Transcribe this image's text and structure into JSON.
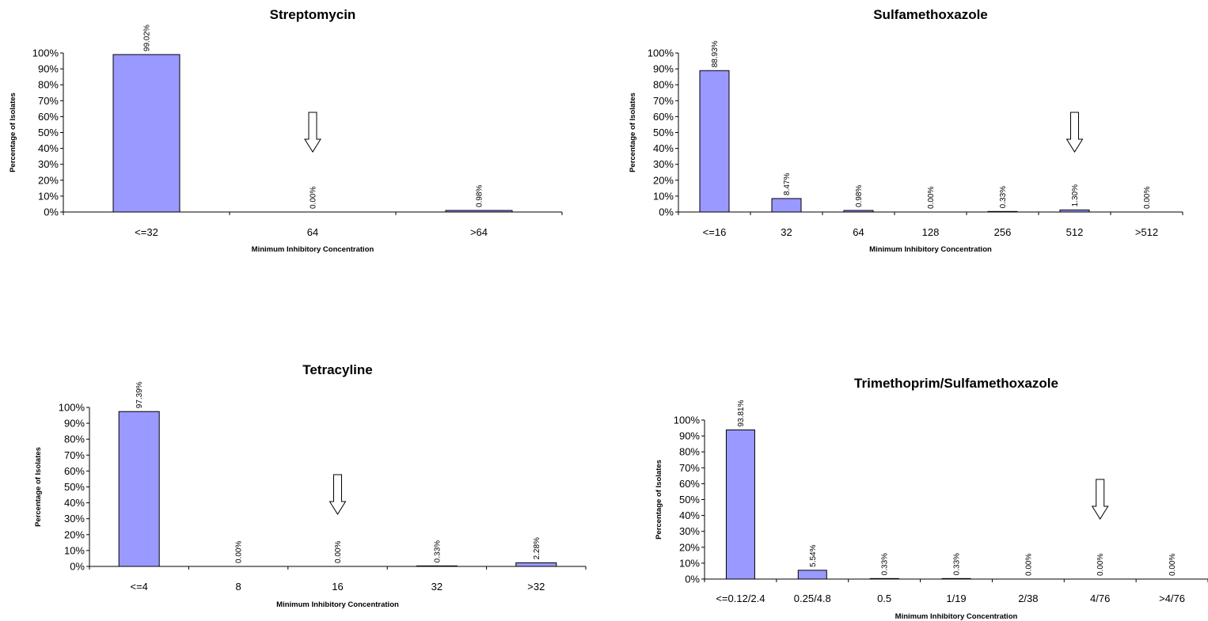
{
  "chart_data": [
    {
      "type": "bar",
      "title": "Streptomycin",
      "xlabel": "Minimum Inhibitory Concentration",
      "ylabel": "Percentage of Isolates",
      "categories": [
        "<=32",
        "64",
        ">64"
      ],
      "values": [
        99.02,
        0.0,
        0.98
      ],
      "data_labels": [
        "99.02%",
        "0.00%",
        "0.98%"
      ],
      "yticks": [
        "0%",
        "10%",
        "20%",
        "30%",
        "40%",
        "50%",
        "60%",
        "70%",
        "80%",
        "90%",
        "100%"
      ],
      "ylim": [
        0,
        100
      ],
      "breakpoint_arrow_category": "64",
      "grid": false,
      "legend": "none"
    },
    {
      "type": "bar",
      "title": "Sulfamethoxazole",
      "xlabel": "Minimum Inhibitory Concentration",
      "ylabel": "Percentage of Isolates",
      "categories": [
        "<=16",
        "32",
        "64",
        "128",
        "256",
        "512",
        ">512"
      ],
      "values": [
        88.93,
        8.47,
        0.98,
        0.0,
        0.33,
        1.3,
        0.0
      ],
      "data_labels": [
        "88.93%",
        "8.47%",
        "0.98%",
        "0.00%",
        "0.33%",
        "1.30%",
        "0.00%"
      ],
      "yticks": [
        "0%",
        "10%",
        "20%",
        "30%",
        "40%",
        "50%",
        "60%",
        "70%",
        "80%",
        "90%",
        "100%"
      ],
      "ylim": [
        0,
        100
      ],
      "breakpoint_arrow_category": "512",
      "grid": false,
      "legend": "none"
    },
    {
      "type": "bar",
      "title": "Tetracyline",
      "xlabel": "Minimum Inhibitory Concentration",
      "ylabel": "Percentage of Isolates",
      "categories": [
        "<=4",
        "8",
        "16",
        "32",
        ">32"
      ],
      "values": [
        97.39,
        0.0,
        0.0,
        0.33,
        2.28
      ],
      "data_labels": [
        "97.39%",
        "0.00%",
        "0.00%",
        "0.33%",
        "2.28%"
      ],
      "yticks": [
        "0%",
        "10%",
        "20%",
        "30%",
        "40%",
        "50%",
        "60%",
        "70%",
        "80%",
        "90%",
        "100%"
      ],
      "ylim": [
        0,
        100
      ],
      "breakpoint_arrow_category": "16",
      "grid": false,
      "legend": "none"
    },
    {
      "type": "bar",
      "title": "Trimethoprim/Sulfamethoxazole",
      "xlabel": "Minimum Inhibitory Concentration",
      "ylabel": "Percentage of Isolates",
      "categories": [
        "<=0.12/2.4",
        "0.25/4.8",
        "0.5",
        "1/19",
        "2/38",
        "4/76",
        ">4/76"
      ],
      "values": [
        93.81,
        5.54,
        0.33,
        0.33,
        0.0,
        0.0,
        0.0
      ],
      "data_labels": [
        "93.81%",
        "5.54%",
        "0.33%",
        "0.33%",
        "0.00%",
        "0.00%",
        "0.00%"
      ],
      "yticks": [
        "0%",
        "10%",
        "20%",
        "30%",
        "40%",
        "50%",
        "60%",
        "70%",
        "80%",
        "90%",
        "100%"
      ],
      "ylim": [
        0,
        100
      ],
      "breakpoint_arrow_category": "4/76",
      "grid": false,
      "legend": "none"
    }
  ],
  "colors": {
    "bar_fill": "#9999ff",
    "bar_stroke": "#000000",
    "axis": "#000000",
    "background": "#ffffff"
  }
}
